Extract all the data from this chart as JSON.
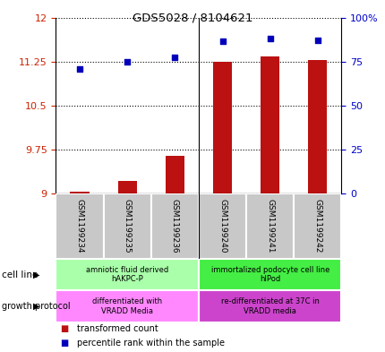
{
  "title": "GDS5028 / 8104621",
  "samples": [
    "GSM1199234",
    "GSM1199235",
    "GSM1199236",
    "GSM1199240",
    "GSM1199241",
    "GSM1199242"
  ],
  "bar_values": [
    9.03,
    9.22,
    9.65,
    11.25,
    11.34,
    11.27
  ],
  "scatter_values": [
    11.12,
    11.25,
    11.32,
    11.6,
    11.65,
    11.62
  ],
  "ylim_left": [
    9.0,
    12.0
  ],
  "ylim_right": [
    0,
    100
  ],
  "yticks_left": [
    9.0,
    9.75,
    10.5,
    11.25,
    12.0
  ],
  "ytick_labels_left": [
    "9",
    "9.75",
    "10.5",
    "11.25",
    "12"
  ],
  "yticks_right": [
    0,
    25,
    50,
    75,
    100
  ],
  "ytick_labels_right": [
    "0",
    "25",
    "50",
    "75",
    "100%"
  ],
  "bar_color": "#bb1111",
  "scatter_color": "#0000bb",
  "cell_line_groups": [
    {
      "label": "amniotic fluid derived\nhAKPC-P",
      "start": 0,
      "end": 3,
      "color": "#aaffaa"
    },
    {
      "label": "immortalized podocyte cell line\nhIPod",
      "start": 3,
      "end": 6,
      "color": "#44ee44"
    }
  ],
  "growth_protocol_groups": [
    {
      "label": "differentiated with\nVRADD Media",
      "start": 0,
      "end": 3,
      "color": "#ff88ff"
    },
    {
      "label": "re-differentiated at 37C in\nVRADD media",
      "start": 3,
      "end": 6,
      "color": "#cc44cc"
    }
  ],
  "left_axis_color": "#cc2200",
  "right_axis_color": "#0000cc",
  "sample_box_color": "#c8c8c8",
  "legend_items": [
    {
      "label": "transformed count",
      "color": "#bb1111"
    },
    {
      "label": "percentile rank within the sample",
      "color": "#0000bb"
    }
  ]
}
